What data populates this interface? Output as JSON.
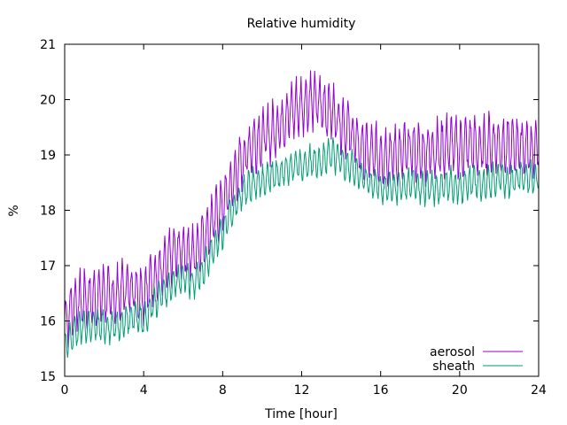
{
  "chart_data": {
    "type": "line",
    "title": "Relative humidity",
    "xlabel": "Time [hour]",
    "ylabel": "%",
    "xlim": [
      0,
      24
    ],
    "ylim": [
      15,
      21
    ],
    "xticks": [
      0,
      4,
      8,
      12,
      16,
      20,
      24
    ],
    "yticks": [
      15,
      16,
      17,
      18,
      19,
      20,
      21
    ],
    "grid": false,
    "legend_position": "bottom-right",
    "series": [
      {
        "name": "aerosol",
        "color": "#9400d3",
        "x": [
          0,
          0.5,
          1,
          1.5,
          2,
          2.5,
          3,
          3.5,
          4,
          4.5,
          5,
          5.5,
          6,
          6.5,
          7,
          7.5,
          8,
          8.5,
          9,
          9.5,
          10,
          10.5,
          11,
          11.5,
          12,
          12.5,
          13,
          13.5,
          14,
          14.5,
          15,
          15.5,
          16,
          16.5,
          17,
          17.5,
          18,
          18.5,
          19,
          19.5,
          20,
          20.5,
          21,
          21.5,
          22,
          22.5,
          23,
          23.5,
          24
        ],
        "y": [
          16.0,
          16.3,
          16.4,
          16.4,
          16.5,
          16.4,
          16.6,
          16.6,
          16.5,
          16.8,
          16.9,
          17.2,
          17.3,
          17.2,
          17.5,
          17.8,
          18.1,
          18.5,
          18.9,
          19.2,
          19.3,
          19.4,
          19.6,
          19.8,
          19.9,
          20.0,
          19.9,
          19.8,
          19.6,
          19.4,
          19.1,
          19.0,
          19.0,
          19.0,
          19.0,
          19.1,
          19.0,
          19.1,
          19.1,
          19.2,
          19.1,
          19.2,
          19.1,
          19.2,
          19.2,
          19.1,
          19.2,
          19.1,
          19.1
        ],
        "amplitude": 0.45
      },
      {
        "name": "sheath",
        "color": "#009e73",
        "x": [
          0,
          0.5,
          1,
          1.5,
          2,
          2.5,
          3,
          3.5,
          4,
          4.5,
          5,
          5.5,
          6,
          6.5,
          7,
          7.5,
          8,
          8.5,
          9,
          9.5,
          10,
          10.5,
          11,
          11.5,
          12,
          12.5,
          13,
          13.5,
          14,
          14.5,
          15,
          15.5,
          16,
          16.5,
          17,
          17.5,
          18,
          18.5,
          19,
          19.5,
          20,
          20.5,
          21,
          21.5,
          22,
          22.5,
          23,
          23.5,
          24
        ],
        "y": [
          15.5,
          15.8,
          15.9,
          15.9,
          15.9,
          15.9,
          16.0,
          16.1,
          16.0,
          16.3,
          16.5,
          16.7,
          16.8,
          16.7,
          16.9,
          17.3,
          17.6,
          18.0,
          18.3,
          18.5,
          18.5,
          18.6,
          18.7,
          18.8,
          18.8,
          18.9,
          18.9,
          19.0,
          18.9,
          18.8,
          18.6,
          18.5,
          18.4,
          18.4,
          18.4,
          18.5,
          18.4,
          18.4,
          18.4,
          18.5,
          18.4,
          18.5,
          18.5,
          18.5,
          18.6,
          18.5,
          18.6,
          18.6,
          18.6
        ],
        "amplitude": 0.25
      }
    ]
  }
}
